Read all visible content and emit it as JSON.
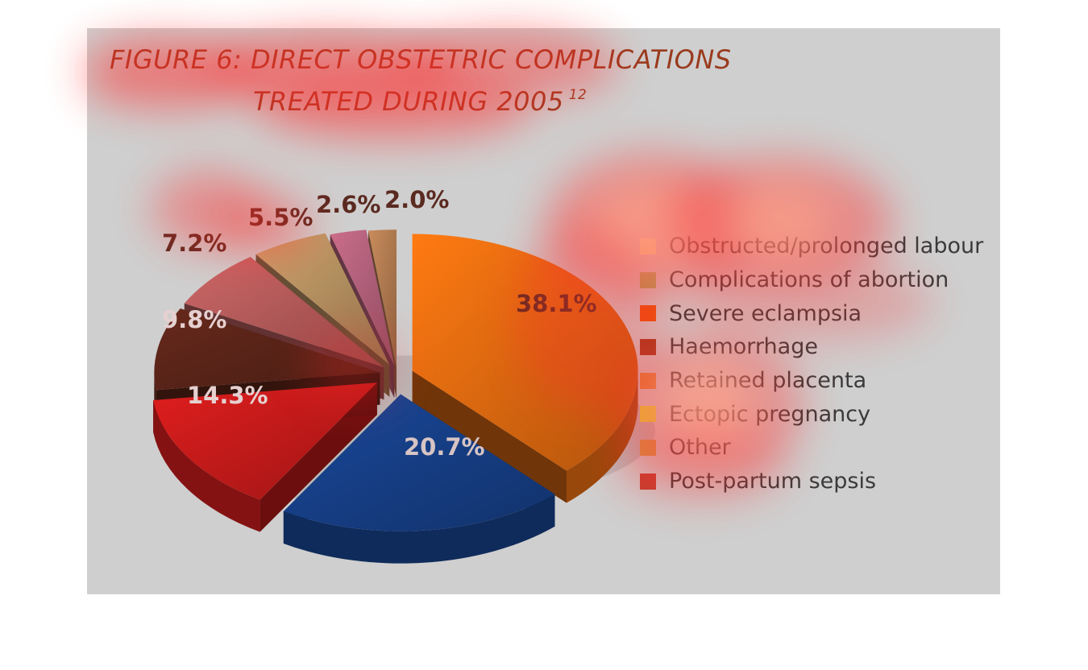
{
  "title": {
    "line1": "FIGURE 6: DIRECT OBSTETRIC COMPLICATIONS",
    "line2": "TREATED DURING 2005",
    "superscript": "12"
  },
  "chart_data": {
    "type": "pie",
    "title": "FIGURE 6: DIRECT OBSTETRIC COMPLICATIONS TREATED DURING 2005",
    "legend_position": "right",
    "slices": [
      {
        "label": "Obstructed/prolonged labour",
        "value": 38.1,
        "value_label": "38.1%",
        "color": "#e06a10"
      },
      {
        "label": "Complications of abortion",
        "value": 20.7,
        "value_label": "20.7%",
        "color": "#163f86"
      },
      {
        "label": "Severe eclampsia",
        "value": 14.3,
        "value_label": "14.3%",
        "color": "#c41a1a"
      },
      {
        "label": "Haemorrhage",
        "value": 9.8,
        "value_label": "9.8%",
        "color": "#5a2418"
      },
      {
        "label": "Retained placenta",
        "value": 7.2,
        "value_label": "7.2%",
        "color": "#b35a5a"
      },
      {
        "label": "Ectopic pregnancy",
        "value": 5.5,
        "value_label": "5.5%",
        "color": "#b39060"
      },
      {
        "label": "Other",
        "value": 2.6,
        "value_label": "2.6%",
        "color": "#b0607a"
      },
      {
        "label": "Post-partum sepsis",
        "value": 2.0,
        "value_label": "2.0%",
        "color": "#b07a50"
      }
    ]
  },
  "legend": {
    "items": [
      {
        "label": "Obstructed/prolonged labour",
        "color": "#f2f2a0"
      },
      {
        "label": "Complications of abortion",
        "color": "#9fae58"
      },
      {
        "label": "Severe eclampsia",
        "color": "#e8540c"
      },
      {
        "label": "Haemorrhage",
        "color": "#9c3a1c"
      },
      {
        "label": "Retained placenta",
        "color": "#d98a3c"
      },
      {
        "label": "Ectopic pregnancy",
        "color": "#e0e23a"
      },
      {
        "label": "Other",
        "color": "#cf9c48"
      },
      {
        "label": "Post-partum sepsis",
        "color": "#bf4030"
      }
    ]
  },
  "colors": {
    "panel_background": "#cfcfcf",
    "title": "#9a3b1e",
    "heatmap_hot": "#ffffd0",
    "heatmap_warm": "#ff2a2a"
  }
}
